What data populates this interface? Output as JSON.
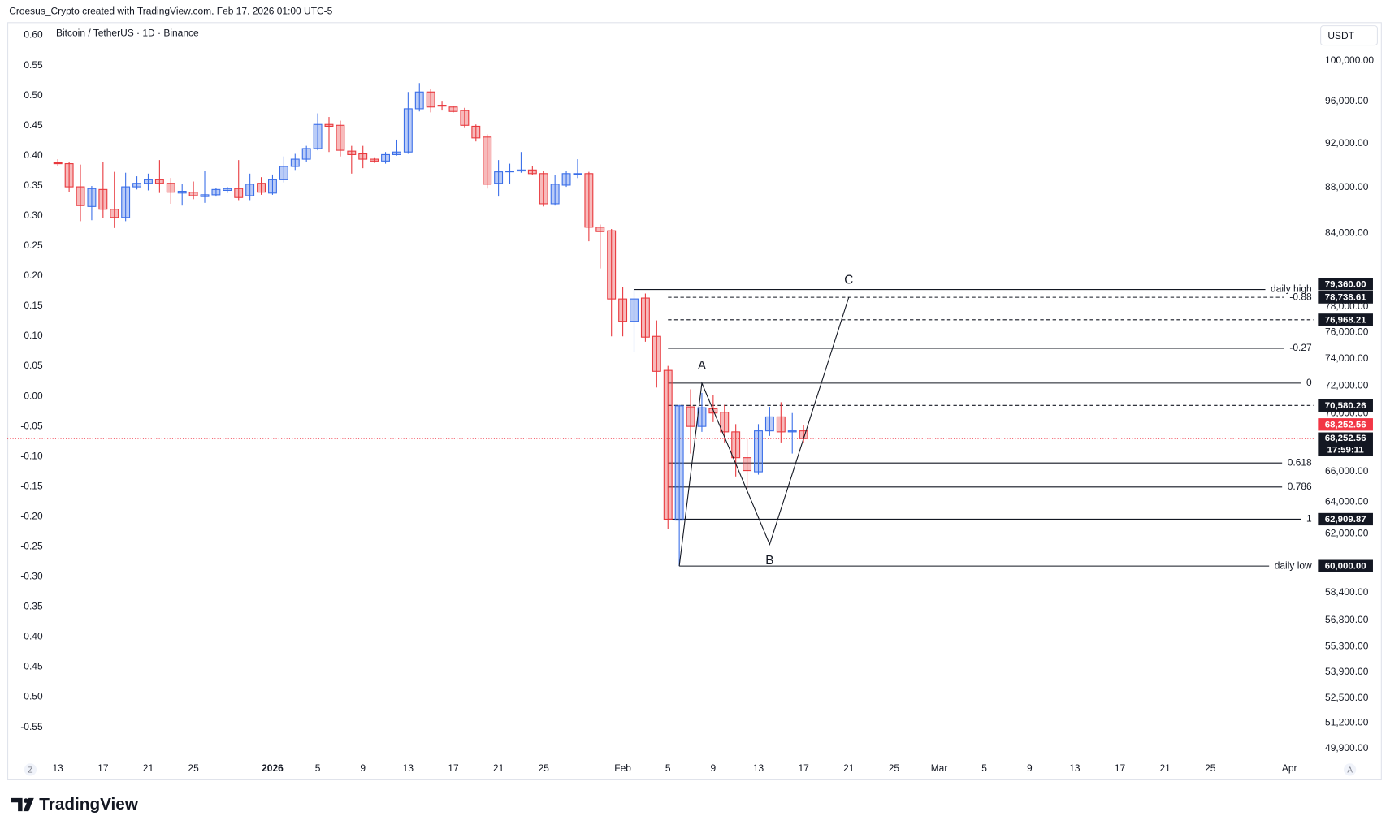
{
  "chart_data": {
    "type": "candlestick",
    "attribution": "Croesus_Crypto created with TradingView.com, Feb 17, 2026 01:00 UTC-5",
    "title": "Bitcoin / TetherUS · 1D · Binance",
    "brand": "TradingView",
    "currency": "USDT",
    "scale_buttons": [
      "Z",
      "A"
    ],
    "up_color": "#3a6ee8",
    "down_color": "#e8383d",
    "last_price_color": "#f23645",
    "grid": false,
    "log_scale": true,
    "x": [
      "2025-12-13",
      "2025-12-14",
      "2025-12-15",
      "2025-12-16",
      "2025-12-17",
      "2025-12-18",
      "2025-12-19",
      "2025-12-20",
      "2025-12-21",
      "2025-12-22",
      "2025-12-23",
      "2025-12-24",
      "2025-12-25",
      "2025-12-26",
      "2025-12-27",
      "2025-12-28",
      "2025-12-29",
      "2025-12-30",
      "2025-12-31",
      "2026-01-01",
      "2026-01-02",
      "2026-01-03",
      "2026-01-04",
      "2026-01-05",
      "2026-01-06",
      "2026-01-07",
      "2026-01-08",
      "2026-01-09",
      "2026-01-10",
      "2026-01-11",
      "2026-01-12",
      "2026-01-13",
      "2026-01-14",
      "2026-01-15",
      "2026-01-16",
      "2026-01-17",
      "2026-01-18",
      "2026-01-19",
      "2026-01-20",
      "2026-01-21",
      "2026-01-22",
      "2026-01-23",
      "2026-01-24",
      "2026-01-25",
      "2026-01-26",
      "2026-01-27",
      "2026-01-28",
      "2026-01-29",
      "2026-01-30",
      "2026-01-31",
      "2026-02-01",
      "2026-02-02",
      "2026-02-03",
      "2026-02-04",
      "2026-02-05",
      "2026-02-06",
      "2026-02-07",
      "2026-02-08",
      "2026-02-09",
      "2026-02-10",
      "2026-02-11",
      "2026-02-12",
      "2026-02-13",
      "2026-02-14",
      "2026-02-15",
      "2026-02-16",
      "2026-02-17"
    ],
    "open": [
      90210,
      90130,
      88045,
      86310,
      87810,
      86070,
      85360,
      88045,
      88360,
      88680,
      88360,
      87490,
      87570,
      87180,
      87340,
      87730,
      87890,
      87260,
      88360,
      87490,
      88680,
      89880,
      90540,
      91520,
      93780,
      93700,
      91280,
      91030,
      90540,
      90370,
      90960,
      91200,
      95280,
      96910,
      95620,
      95450,
      95110,
      93610,
      92590,
      88360,
      89390,
      89470,
      89560,
      89230,
      86550,
      88200,
      89150,
      89230,
      84520,
      84220,
      78610,
      76850,
      78680,
      75690,
      73130,
      62850,
      70480,
      69100,
      70350,
      70100,
      68720,
      66950,
      66000,
      68790,
      69770,
      68720,
      68790
    ],
    "high": [
      90540,
      90290,
      90050,
      88120,
      90290,
      89390,
      89310,
      88990,
      89230,
      90460,
      88840,
      88280,
      88520,
      89470,
      87970,
      88045,
      90460,
      89230,
      88910,
      89150,
      90790,
      91030,
      91770,
      94840,
      94490,
      94140,
      91770,
      91770,
      90710,
      91200,
      92350,
      96910,
      97790,
      97170,
      95970,
      95540,
      95370,
      93780,
      92840,
      90460,
      90130,
      91200,
      89880,
      89470,
      89070,
      89470,
      90540,
      89390,
      84750,
      84370,
      79530,
      79360,
      79040,
      76920,
      73460,
      70620,
      71740,
      71480,
      71350,
      70620,
      69260,
      68240,
      69260,
      70480,
      70810,
      70040,
      69190
    ],
    "low": [
      89880,
      87570,
      85040,
      85120,
      85280,
      84450,
      85040,
      87810,
      87730,
      87500,
      86550,
      86390,
      86950,
      86630,
      87180,
      87500,
      86870,
      86870,
      87340,
      87340,
      88440,
      89560,
      90290,
      91360,
      91200,
      90790,
      89230,
      89720,
      90210,
      90130,
      90870,
      91030,
      95020,
      94930,
      95110,
      94930,
      93440,
      92180,
      87890,
      87180,
      88280,
      89310,
      89070,
      86310,
      86390,
      88045,
      88830,
      83330,
      81070,
      75690,
      75690,
      74470,
      75280,
      71870,
      62280,
      60000,
      67230,
      68720,
      69400,
      67990,
      65690,
      64880,
      65810,
      68440,
      67990,
      67230,
      67990
    ],
    "close": [
      90130,
      88045,
      86390,
      87890,
      86070,
      85360,
      88045,
      88360,
      88680,
      88360,
      87570,
      87650,
      87260,
      87340,
      87810,
      87890,
      87100,
      88280,
      87570,
      88680,
      89880,
      90540,
      91520,
      93780,
      93610,
      91360,
      90960,
      90540,
      90370,
      90960,
      91200,
      95280,
      96910,
      95450,
      95540,
      95020,
      93700,
      92510,
      88280,
      89390,
      89470,
      89560,
      89230,
      86550,
      88280,
      89230,
      89230,
      84520,
      84150,
      78610,
      76850,
      78610,
      75630,
      73060,
      62910,
      70550,
      69100,
      70420,
      70040,
      68720,
      66950,
      66080,
      68790,
      69770,
      68720,
      68790,
      68252.56
    ],
    "xlim": [
      "2025-12-09",
      "2026-04-04"
    ],
    "xticks": [
      {
        "value": "2025-12-13",
        "label": "13"
      },
      {
        "value": "2025-12-17",
        "label": "17"
      },
      {
        "value": "2025-12-21",
        "label": "21"
      },
      {
        "value": "2025-12-25",
        "label": "25"
      },
      {
        "value": "2026-01-01",
        "label": "2026"
      },
      {
        "value": "2026-01-05",
        "label": "5"
      },
      {
        "value": "2026-01-09",
        "label": "9"
      },
      {
        "value": "2026-01-13",
        "label": "13"
      },
      {
        "value": "2026-01-17",
        "label": "17"
      },
      {
        "value": "2026-01-21",
        "label": "21"
      },
      {
        "value": "2026-01-25",
        "label": "25"
      },
      {
        "value": "2026-02-01",
        "label": "Feb"
      },
      {
        "value": "2026-02-05",
        "label": "5"
      },
      {
        "value": "2026-02-09",
        "label": "9"
      },
      {
        "value": "2026-02-13",
        "label": "13"
      },
      {
        "value": "2026-02-17",
        "label": "17"
      },
      {
        "value": "2026-02-21",
        "label": "21"
      },
      {
        "value": "2026-02-25",
        "label": "25"
      },
      {
        "value": "2026-03-01",
        "label": "Mar"
      },
      {
        "value": "2026-03-05",
        "label": "5"
      },
      {
        "value": "2026-03-09",
        "label": "9"
      },
      {
        "value": "2026-03-13",
        "label": "13"
      },
      {
        "value": "2026-03-17",
        "label": "17"
      },
      {
        "value": "2026-03-21",
        "label": "21"
      },
      {
        "value": "2026-03-25",
        "label": "25"
      },
      {
        "value": "2026-04-01",
        "label": "Apr"
      }
    ],
    "ylim": [
      49450,
      104000
    ],
    "yticks": [
      {
        "value": 100000,
        "label": "100,000.00"
      },
      {
        "value": 96000,
        "label": "96,000.00"
      },
      {
        "value": 92000,
        "label": "92,000.00"
      },
      {
        "value": 88000,
        "label": "88,000.00"
      },
      {
        "value": 84000,
        "label": "84,000.00"
      },
      {
        "value": 78000,
        "label": "78,000.00"
      },
      {
        "value": 76000,
        "label": "76,000.00"
      },
      {
        "value": 74000,
        "label": "74,000.00"
      },
      {
        "value": 72000,
        "label": "72,000.00"
      },
      {
        "value": 70000,
        "label": "70,000.00"
      },
      {
        "value": 66000,
        "label": "66,000.00"
      },
      {
        "value": 64000,
        "label": "64,000.00"
      },
      {
        "value": 62000,
        "label": "62,000.00"
      },
      {
        "value": 58400,
        "label": "58,400.00"
      },
      {
        "value": 56800,
        "label": "56,800.00"
      },
      {
        "value": 55300,
        "label": "55,300.00"
      },
      {
        "value": 53900,
        "label": "53,900.00"
      },
      {
        "value": 52500,
        "label": "52,500.00"
      },
      {
        "value": 51200,
        "label": "51,200.00"
      },
      {
        "value": 49900,
        "label": "49,900.00"
      }
    ],
    "y2lim": [
      -0.6,
      0.622
    ],
    "y2ticks": [
      {
        "value": 0.6,
        "label": "0.60"
      },
      {
        "value": 0.55,
        "label": "0.55"
      },
      {
        "value": 0.5,
        "label": "0.50"
      },
      {
        "value": 0.45,
        "label": "0.45"
      },
      {
        "value": 0.4,
        "label": "0.40"
      },
      {
        "value": 0.35,
        "label": "0.35"
      },
      {
        "value": 0.3,
        "label": "0.30"
      },
      {
        "value": 0.25,
        "label": "0.25"
      },
      {
        "value": 0.2,
        "label": "0.20"
      },
      {
        "value": 0.15,
        "label": "0.15"
      },
      {
        "value": 0.1,
        "label": "0.10"
      },
      {
        "value": 0.05,
        "label": "0.05"
      },
      {
        "value": 0,
        "label": "0.00"
      },
      {
        "value": -0.05,
        "label": "-0.05"
      },
      {
        "value": -0.1,
        "label": "-0.10"
      },
      {
        "value": -0.15,
        "label": "-0.15"
      },
      {
        "value": -0.2,
        "label": "-0.20"
      },
      {
        "value": -0.25,
        "label": "-0.25"
      },
      {
        "value": -0.3,
        "label": "-0.30"
      },
      {
        "value": -0.35,
        "label": "-0.35"
      },
      {
        "value": -0.4,
        "label": "-0.40"
      },
      {
        "value": -0.45,
        "label": "-0.45"
      },
      {
        "value": -0.5,
        "label": "-0.50"
      },
      {
        "value": -0.55,
        "label": "-0.55"
      }
    ],
    "levels": [
      {
        "value": 79360,
        "label": "daily high",
        "style": "solid",
        "start": "2026-02-02",
        "price_label": "79,360.00"
      },
      {
        "value": 78738.61,
        "label": "-0.88",
        "style": "dashed",
        "start": "2026-02-05",
        "price_label": "78,738.61"
      },
      {
        "value": 76968.21,
        "style": "dashed",
        "start": "2026-02-05",
        "price_label": "76,968.21"
      },
      {
        "value": 74780,
        "label": "-0.27",
        "style": "solid",
        "start": "2026-02-05"
      },
      {
        "value": 72190,
        "label": "0",
        "style": "solid",
        "start": "2026-02-05"
      },
      {
        "value": 70580.26,
        "style": "dashed",
        "start": "2026-02-05",
        "price_label": "70,580.26"
      },
      {
        "value": 66590,
        "label": "0.618",
        "style": "solid",
        "start": "2026-02-05"
      },
      {
        "value": 64990,
        "label": "0.786",
        "style": "solid",
        "start": "2026-02-05"
      },
      {
        "value": 62909.87,
        "label": "1",
        "style": "solid",
        "start": "2026-02-05",
        "price_label": "62,909.87"
      },
      {
        "value": 60000,
        "label": "daily low",
        "style": "solid",
        "start": "2026-02-06",
        "price_label": "60,000.00"
      }
    ],
    "pattern": [
      {
        "x": "2026-02-06",
        "y": 60000
      },
      {
        "x": "2026-02-08",
        "y": 72190,
        "label": "A"
      },
      {
        "x": "2026-02-14",
        "y": 61330,
        "label": "B"
      },
      {
        "x": "2026-02-17",
        "y": 68252.56
      },
      {
        "x": "2026-02-21",
        "y": 78738.61,
        "label": "C"
      }
    ],
    "last_price": 68252.56,
    "last_price_label": "68,252.56",
    "countdown": "17:59:11"
  }
}
